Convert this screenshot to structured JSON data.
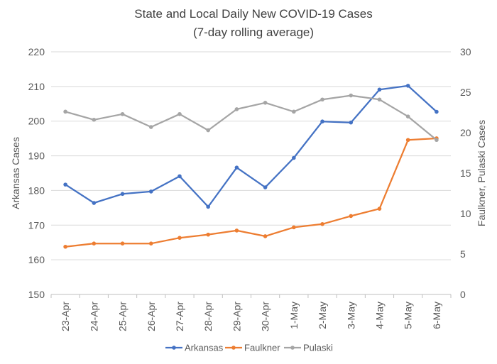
{
  "chart_data": {
    "type": "line",
    "title": "State and Local Daily New COVID-19 Cases",
    "subtitle": "(7-day rolling average)",
    "categories": [
      "23-Apr",
      "24-Apr",
      "25-Apr",
      "26-Apr",
      "27-Apr",
      "28-Apr",
      "29-Apr",
      "30-Apr",
      "1-May",
      "2-May",
      "3-May",
      "4-May",
      "5-May",
      "6-May"
    ],
    "ylabel": "Arkansas Cases",
    "y2label": "Faulkner, Pulaski Cases",
    "ylim": [
      150,
      220
    ],
    "y2lim": [
      0,
      30
    ],
    "yticks": [
      150,
      160,
      170,
      180,
      190,
      200,
      210,
      220
    ],
    "y2ticks": [
      0,
      5,
      10,
      15,
      20,
      25,
      30
    ],
    "grid": true,
    "legend_position": "bottom",
    "series": [
      {
        "name": "Arkansas",
        "axis": "left",
        "color": "#4472C4",
        "values": [
          181.7,
          176.4,
          179.0,
          179.7,
          184.1,
          175.3,
          186.6,
          180.9,
          189.4,
          199.9,
          199.6,
          209.1,
          210.2,
          202.7
        ]
      },
      {
        "name": "Faulkner",
        "axis": "right",
        "color": "#ED7D31",
        "values": [
          5.9,
          6.3,
          6.3,
          6.3,
          7.0,
          7.4,
          7.9,
          7.2,
          8.3,
          8.7,
          9.7,
          10.6,
          19.1,
          19.3
        ]
      },
      {
        "name": "Pulaski",
        "axis": "right",
        "color": "#A5A5A5",
        "values": [
          22.6,
          21.6,
          22.3,
          20.7,
          22.3,
          20.3,
          22.9,
          23.7,
          22.6,
          24.1,
          24.6,
          24.1,
          22.0,
          19.1
        ]
      }
    ]
  }
}
